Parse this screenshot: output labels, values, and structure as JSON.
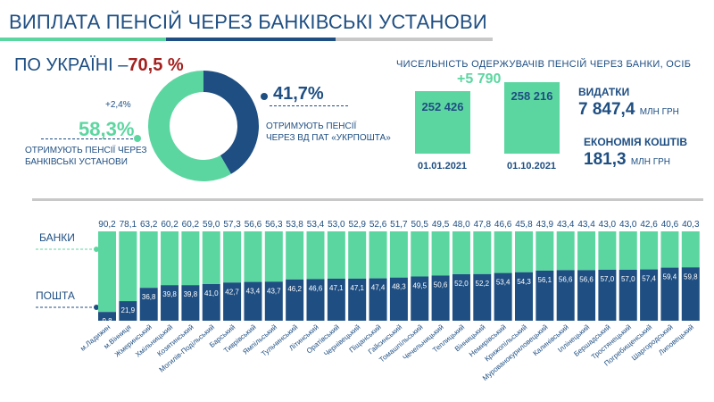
{
  "title": "ВИПЛАТА ПЕНСІЙ ЧЕРЕЗ БАНКІВСЬКІ УСТАНОВИ",
  "ukraine": {
    "label": "ПО УКРАЇНІ –",
    "value": "70,5 %"
  },
  "donut": {
    "banks_percent": 58.3,
    "post_percent": 41.7,
    "banks_value": "58,3%",
    "banks_change": "+2,4%",
    "banks_caption_1": "ОТРИМУЮТЬ ПЕНСІЇ ЧЕРЕЗ",
    "banks_caption_2": "БАНКІВСЬКІ УСТАНОВИ",
    "post_value": "41,7%",
    "post_caption_1": "ОТРИМУЮТЬ ПЕНСІЇ",
    "post_caption_2": "ЧЕРЕЗ ВД ПАТ «УКРПОШТА»",
    "colors": {
      "banks": "#5cd6a0",
      "post": "#1e4e82"
    }
  },
  "recipients": {
    "heading": "ЧИСЕЛЬНІСТЬ ОДЕРЖУВАЧІВ ПЕНСІЙ ЧЕРЕЗ БАНКИ, ОСІБ",
    "increase": "+5 790",
    "bars": [
      {
        "date": "01.01.2021",
        "label": "252 426",
        "value": 252426
      },
      {
        "date": "01.10.2021",
        "label": "258 216",
        "value": 258216
      }
    ]
  },
  "expenses": {
    "label": "ВИДАТКИ",
    "value": "7 847,4",
    "unit": "МЛН ГРН"
  },
  "savings": {
    "label": "ЕКОНОМІЯ КОШТІВ",
    "value": "181,3",
    "unit": "МЛН ГРН"
  },
  "legend": {
    "banks": "БАНКИ",
    "post": "ПОШТА"
  },
  "chart_data": {
    "type": "bar",
    "stacked": true,
    "ylim": [
      0,
      100
    ],
    "categories": [
      "м.Ладижин",
      "м.Вінниця",
      "Жмеринський",
      "Хмільницький",
      "Козятинський",
      "Могилів-Подільський",
      "Барський",
      "Тиврівський",
      "Ямпільський",
      "Тульчинський",
      "Літинський",
      "Оратівський",
      "Чернівецький",
      "Піщанський",
      "Гайсинський",
      "Томашпільський",
      "Чечельницький",
      "Теплицький",
      "Вінницький",
      "Немирівський",
      "Крижопільський",
      "Мурованокуриловецький",
      "Калинівський",
      "Іллінецький",
      "Бершадський",
      "Тростянецький",
      "Погребищенський",
      "Шаргородський",
      "Липовецький"
    ],
    "series": [
      {
        "name": "БАНКИ",
        "values": [
          90.2,
          78.1,
          63.2,
          60.2,
          60.2,
          59.0,
          57.3,
          56.6,
          56.3,
          53.8,
          53.4,
          53.0,
          52.9,
          52.6,
          51.7,
          50.5,
          49.5,
          48.0,
          47.8,
          46.6,
          45.8,
          43.9,
          43.4,
          43.4,
          43.0,
          43.0,
          42.6,
          40.6,
          40.3
        ],
        "labels": [
          "90,2",
          "78,1",
          "63,2",
          "60,2",
          "60,2",
          "59,0",
          "57,3",
          "56,6",
          "56,3",
          "53,8",
          "53,4",
          "53,0",
          "52,9",
          "52,6",
          "51,7",
          "50,5",
          "49,5",
          "48,0",
          "47,8",
          "46,6",
          "45,8",
          "43,9",
          "43,4",
          "43,4",
          "43,0",
          "43,0",
          "42,6",
          "40,6",
          "40,3"
        ]
      },
      {
        "name": "ПОШТА",
        "values": [
          9.8,
          21.9,
          36.8,
          39.8,
          39.8,
          41.0,
          42.7,
          43.4,
          43.7,
          46.2,
          46.6,
          47.1,
          47.1,
          47.4,
          48.3,
          49.5,
          50.6,
          52.0,
          52.2,
          53.4,
          54.3,
          56.1,
          56.6,
          56.6,
          57.0,
          57.0,
          57.4,
          59.4,
          59.8
        ],
        "labels": [
          "9,8",
          "21,9",
          "36,8",
          "39,8",
          "39,8",
          "41,0",
          "42,7",
          "43,4",
          "43,7",
          "46,2",
          "46,6",
          "47,1",
          "47,1",
          "47,4",
          "48,3",
          "49,5",
          "50,6",
          "52,0",
          "52,2",
          "53,4",
          "54,3",
          "56,1",
          "56,6",
          "56,6",
          "57,0",
          "57,0",
          "57,4",
          "59,4",
          "59,8"
        ]
      }
    ],
    "colors": {
      "banks": "#5cd6a0",
      "post": "#1e4e82"
    }
  }
}
